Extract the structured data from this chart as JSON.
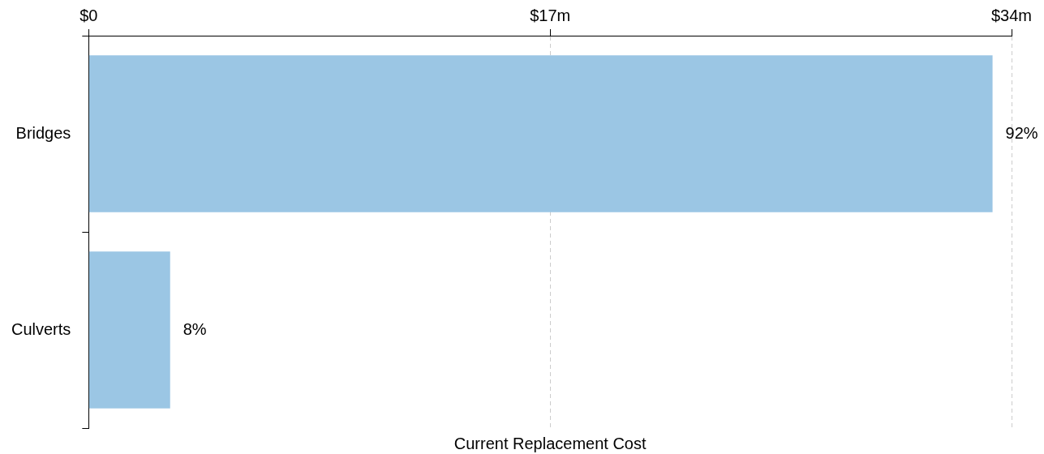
{
  "chart_data": {
    "type": "bar",
    "orientation": "horizontal",
    "xlabel": "Current Replacement Cost",
    "categories": [
      "Bridges",
      "Culverts"
    ],
    "values": [
      33.3,
      3.0
    ],
    "color": "#9bc6e4",
    "annotations": [
      {
        "text": "92%",
        "x": 33.3,
        "y": "Bridges"
      },
      {
        "text": "8%",
        "x": 3.0,
        "y": "Culverts"
      }
    ],
    "xlim": [
      0,
      34
    ],
    "xticks": [
      {
        "value": 0,
        "label": "$0"
      },
      {
        "value": 17,
        "label": "$17m"
      },
      {
        "value": 34,
        "label": "$34m"
      }
    ],
    "grid": "x",
    "legend": false
  }
}
